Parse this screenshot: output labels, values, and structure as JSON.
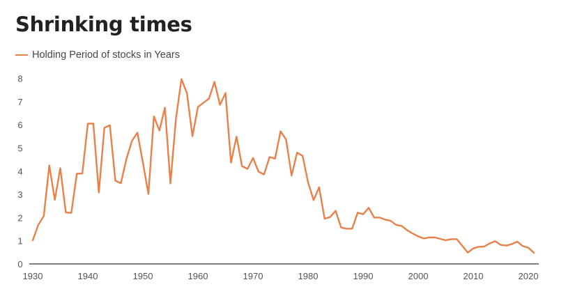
{
  "header": {
    "title": "Shrinking times",
    "legend_label": "Holding Period of stocks in Years"
  },
  "colors": {
    "line": "#E8804A",
    "axis": "#333333",
    "title": "#222222",
    "tick_text": "#555555"
  },
  "chart_data": {
    "type": "line",
    "title": "Shrinking times",
    "xlabel": "",
    "ylabel": "",
    "ylim": [
      0,
      8
    ],
    "xlim": [
      1930,
      2021
    ],
    "grid": false,
    "legend_position": "top-left",
    "x_ticks": [
      1930,
      1940,
      1950,
      1960,
      1970,
      1980,
      1990,
      2000,
      2010,
      2020
    ],
    "y_ticks": [
      0,
      1,
      2,
      3,
      4,
      5,
      6,
      7,
      8
    ],
    "series": [
      {
        "name": "Holding Period of stocks in Years",
        "x": [
          1930,
          1931,
          1932,
          1933,
          1934,
          1935,
          1936,
          1937,
          1938,
          1939,
          1940,
          1941,
          1942,
          1943,
          1944,
          1945,
          1946,
          1947,
          1948,
          1949,
          1950,
          1951,
          1952,
          1953,
          1954,
          1955,
          1956,
          1957,
          1958,
          1959,
          1960,
          1961,
          1962,
          1963,
          1964,
          1965,
          1966,
          1967,
          1968,
          1969,
          1970,
          1971,
          1972,
          1973,
          1974,
          1975,
          1976,
          1977,
          1978,
          1979,
          1980,
          1981,
          1982,
          1983,
          1984,
          1985,
          1986,
          1987,
          1988,
          1989,
          1990,
          1991,
          1992,
          1993,
          1994,
          1995,
          1996,
          1997,
          1998,
          1999,
          2000,
          2001,
          2002,
          2003,
          2004,
          2005,
          2006,
          2007,
          2008,
          2009,
          2010,
          2011,
          2012,
          2013,
          2014,
          2015,
          2016,
          2017,
          2018,
          2019,
          2020,
          2021
        ],
        "values": [
          1.02,
          1.68,
          2.07,
          4.25,
          2.76,
          4.13,
          2.22,
          2.2,
          3.89,
          3.9,
          6.05,
          6.05,
          3.08,
          5.87,
          5.98,
          3.59,
          3.48,
          4.52,
          5.3,
          5.66,
          4.37,
          3.02,
          6.36,
          5.75,
          6.74,
          3.47,
          6.26,
          7.97,
          7.36,
          5.51,
          6.77,
          6.95,
          7.13,
          7.85,
          6.86,
          7.37,
          4.37,
          5.49,
          4.22,
          4.1,
          4.57,
          3.98,
          3.86,
          4.61,
          4.54,
          5.72,
          5.36,
          3.81,
          4.8,
          4.66,
          3.51,
          2.75,
          3.31,
          1.95,
          2.02,
          2.29,
          1.57,
          1.52,
          1.52,
          2.21,
          2.14,
          2.42,
          2.0,
          2.0,
          1.91,
          1.86,
          1.68,
          1.64,
          1.45,
          1.31,
          1.19,
          1.1,
          1.14,
          1.14,
          1.08,
          1.02,
          1.07,
          1.07,
          0.78,
          0.49,
          0.67,
          0.74,
          0.75,
          0.89,
          0.98,
          0.82,
          0.79,
          0.86,
          0.96,
          0.77,
          0.7,
          0.48
        ],
        "color": "#E8804A"
      }
    ]
  }
}
